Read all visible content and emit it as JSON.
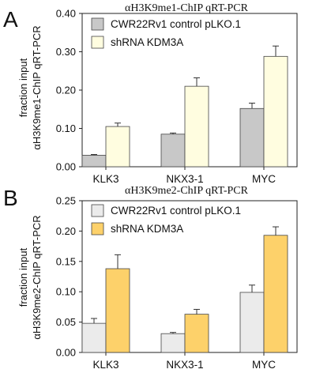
{
  "panels": [
    {
      "letter": "A",
      "ylabel_lines": [
        "fraction input",
        "αH3K9me1-ChIP qRT-PCR"
      ]
    },
    {
      "letter": "B",
      "ylabel_lines": [
        "fraction input",
        "αH3K9me2-ChIP qRT-PCR"
      ]
    }
  ],
  "chart_data": [
    {
      "type": "bar",
      "title": "αH3K9me1-ChIP qRT-PCR",
      "ylabel": "fraction input αH3K9me1-ChIP qRT-PCR",
      "categories": [
        "KLK3",
        "NKX3-1",
        "MYC"
      ],
      "ylim": [
        0,
        0.4
      ],
      "yticks": [
        0.0,
        0.1,
        0.2,
        0.3,
        0.4
      ],
      "ytick_labels": [
        "0.00",
        "0.10",
        "0.20",
        "0.30",
        "0.40"
      ],
      "legend_position": "top-left",
      "series": [
        {
          "name": "CWR22Rv1 control pLKO.1",
          "color": "#c8c8c8",
          "values": [
            0.03,
            0.085,
            0.152
          ],
          "errors": [
            0.002,
            0.003,
            0.014
          ]
        },
        {
          "name": "shRNA KDM3A",
          "color": "#fffde0",
          "values": [
            0.105,
            0.21,
            0.288
          ],
          "errors": [
            0.009,
            0.022,
            0.027
          ]
        }
      ]
    },
    {
      "type": "bar",
      "title": "αH3K9me2-ChIP qRT-PCR",
      "ylabel": "fraction input αH3K9me2-ChIP qRT-PCR",
      "categories": [
        "KLK3",
        "NKX3-1",
        "MYC"
      ],
      "ylim": [
        0,
        0.25
      ],
      "yticks": [
        0.0,
        0.05,
        0.1,
        0.15,
        0.2,
        0.25
      ],
      "ytick_labels": [
        "0.00",
        "0.05",
        "0.10",
        "0.15",
        "0.20",
        "0.25"
      ],
      "legend_position": "top-left",
      "series": [
        {
          "name": "CWR22Rv1 control pLKO.1",
          "color": "#ebebeb",
          "values": [
            0.048,
            0.031,
            0.099
          ],
          "errors": [
            0.008,
            0.002,
            0.012
          ]
        },
        {
          "name": "shRNA KDM3A",
          "color": "#fdd16a",
          "values": [
            0.138,
            0.063,
            0.193
          ],
          "errors": [
            0.023,
            0.008,
            0.014
          ]
        }
      ]
    }
  ]
}
